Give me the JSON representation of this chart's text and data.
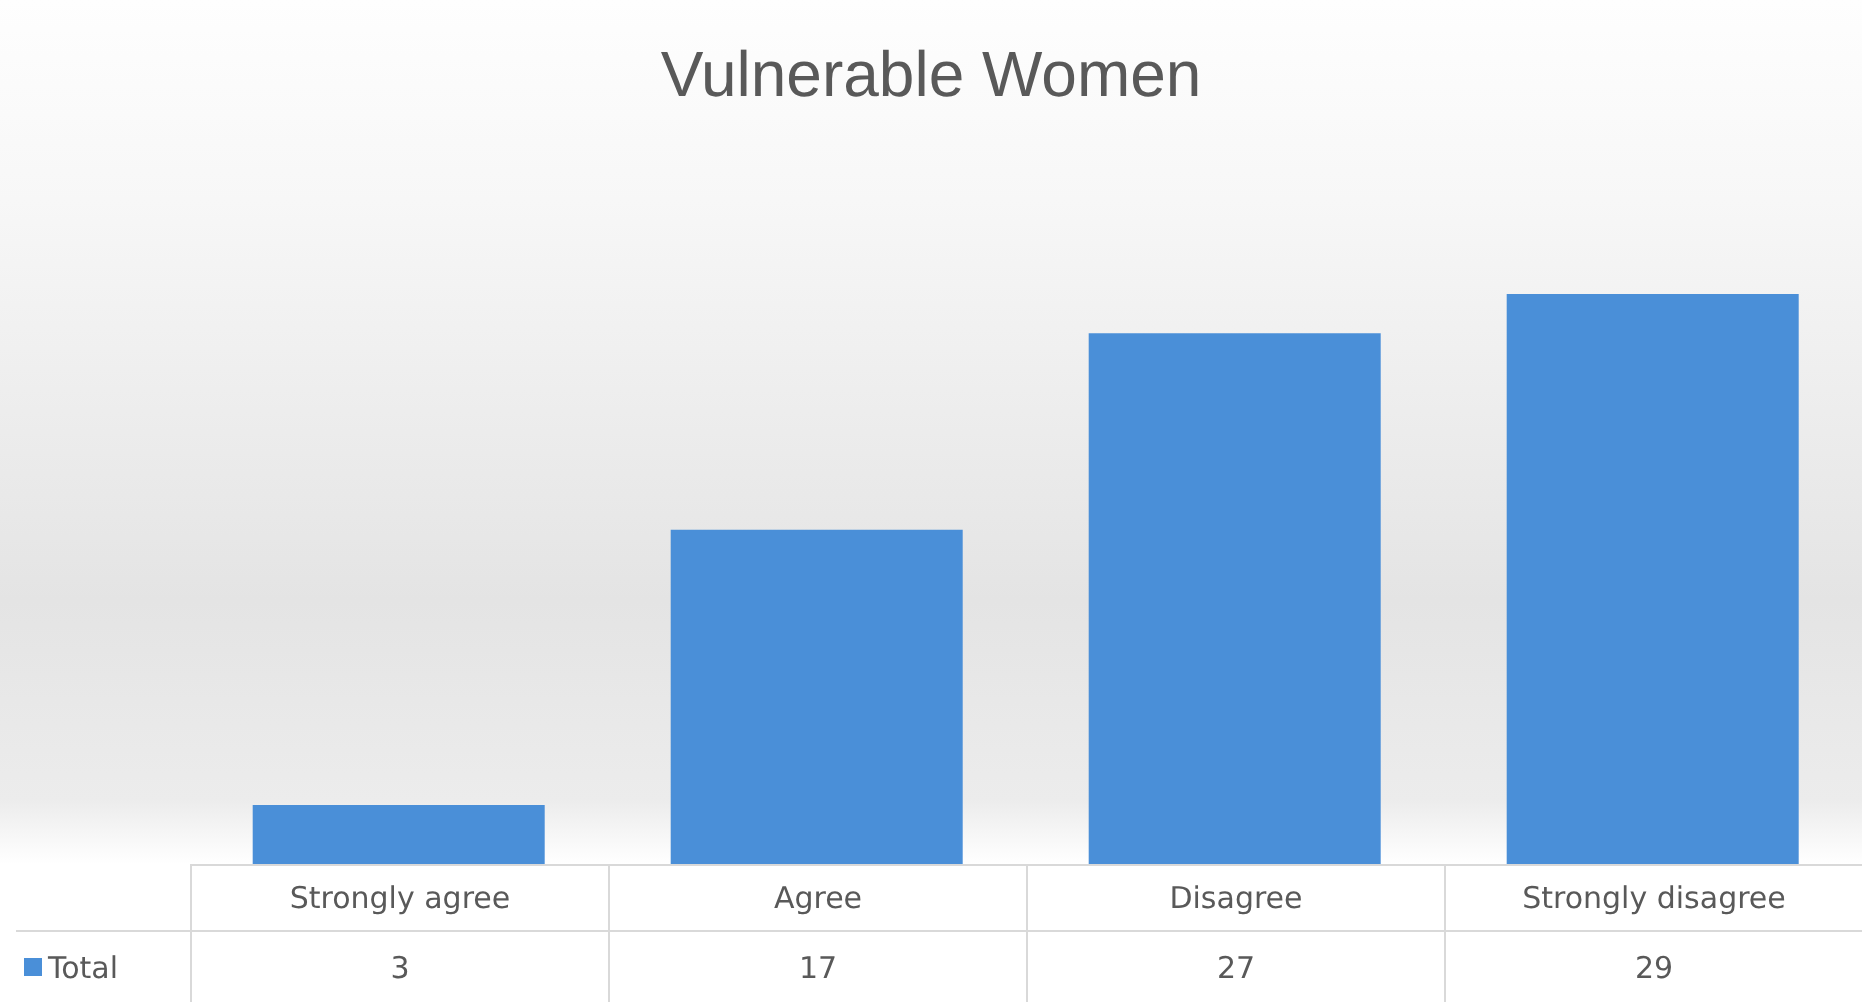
{
  "chart_data": {
    "type": "bar",
    "title": "Vulnerable Women",
    "categories": [
      "Strongly agree",
      "Agree",
      "Disagree",
      "Strongly disagree"
    ],
    "series": [
      {
        "name": "Total",
        "color": "#4a8fd8",
        "values": [
          3,
          17,
          27,
          29
        ]
      }
    ],
    "data_labels": true,
    "legend": "bottom left"
  }
}
